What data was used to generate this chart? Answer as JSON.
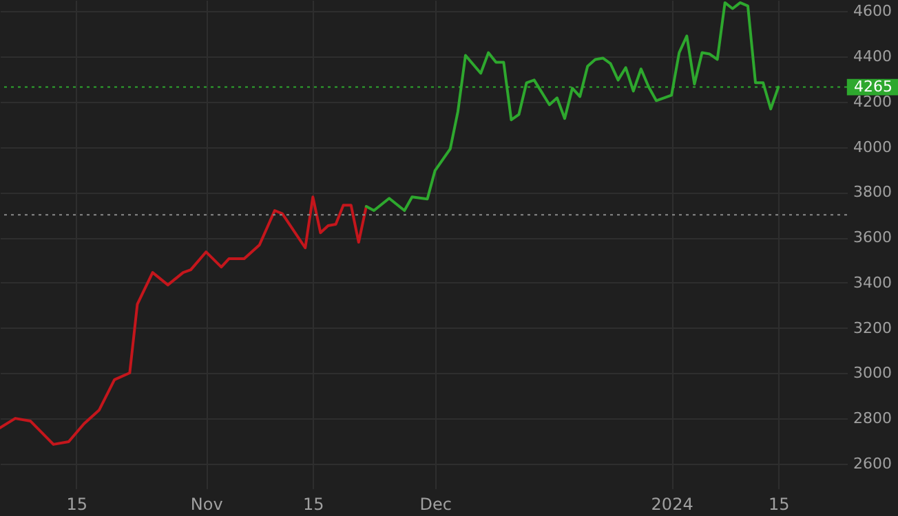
{
  "chart_data": {
    "type": "line",
    "x": [
      "2023-10-05",
      "2023-10-07",
      "2023-10-09",
      "2023-10-12",
      "2023-10-14",
      "2023-10-16",
      "2023-10-18",
      "2023-10-20",
      "2023-10-22",
      "2023-10-23",
      "2023-10-25",
      "2023-10-27",
      "2023-10-29",
      "2023-10-30",
      "2023-11-01",
      "2023-11-03",
      "2023-11-04",
      "2023-11-06",
      "2023-11-08",
      "2023-11-10",
      "2023-11-11",
      "2023-11-14",
      "2023-11-15",
      "2023-11-16",
      "2023-11-17",
      "2023-11-18",
      "2023-11-19",
      "2023-11-20",
      "2023-11-21",
      "2023-11-22",
      "2023-11-23",
      "2023-11-25",
      "2023-11-27",
      "2023-11-28",
      "2023-11-30",
      "2023-12-01",
      "2023-12-03",
      "2023-12-04",
      "2023-12-05",
      "2023-12-07",
      "2023-12-08",
      "2023-12-09",
      "2023-12-10",
      "2023-12-11",
      "2023-12-12",
      "2023-12-13",
      "2023-12-14",
      "2023-12-16",
      "2023-12-17",
      "2023-12-18",
      "2023-12-19",
      "2023-12-20",
      "2023-12-21",
      "2023-12-22",
      "2023-12-23",
      "2023-12-24",
      "2023-12-25",
      "2023-12-26",
      "2023-12-27",
      "2023-12-28",
      "2023-12-29",
      "2023-12-30",
      "2024-01-01",
      "2024-01-02",
      "2024-01-03",
      "2024-01-04",
      "2024-01-05",
      "2024-01-06",
      "2024-01-07",
      "2024-01-08",
      "2024-01-09",
      "2024-01-10",
      "2024-01-11",
      "2024-01-12",
      "2024-01-13",
      "2024-01-14",
      "2024-01-15"
    ],
    "series": [
      {
        "color": "#c4161c",
        "values": [
          2758,
          2800,
          2788,
          2685,
          2697,
          2776,
          2837,
          2971,
          3001,
          3305,
          3445,
          3390,
          3445,
          3457,
          3536,
          3469,
          3506,
          3506,
          3567,
          3719,
          3705,
          3554,
          3779,
          3621,
          3652,
          3658,
          3743,
          3743,
          3579,
          3737,
          null,
          null,
          null,
          null,
          null,
          null,
          null,
          null,
          null,
          null,
          null,
          null,
          null,
          null,
          null,
          null,
          null,
          null,
          null,
          null,
          null,
          null,
          null,
          null,
          null,
          null,
          null,
          null,
          null,
          null,
          null,
          null,
          null,
          null,
          null,
          null,
          null,
          null,
          null,
          null,
          null,
          null,
          null,
          null,
          null,
          null,
          null
        ]
      },
      {
        "color": "#2ea82e",
        "values": [
          null,
          null,
          null,
          null,
          null,
          null,
          null,
          null,
          null,
          null,
          null,
          null,
          null,
          null,
          null,
          null,
          null,
          null,
          null,
          null,
          null,
          null,
          null,
          null,
          null,
          null,
          null,
          null,
          null,
          3737,
          3719,
          3773,
          3719,
          3779,
          3770,
          3895,
          3992,
          4156,
          4405,
          4326,
          4417,
          4375,
          4375,
          4120,
          4144,
          4284,
          4296,
          4187,
          4217,
          4126,
          4260,
          4223,
          4357,
          4387,
          4393,
          4369,
          4296,
          4351,
          4247,
          4345,
          4266,
          4205,
          4229,
          4417,
          4491,
          4278,
          4417,
          4411,
          4387,
          4638,
          4612,
          4638,
          4624,
          4284,
          4284,
          4168,
          4265
        ]
      }
    ],
    "xlim": [
      "2023-10-05",
      "2024-01-24"
    ],
    "xticks": [
      {
        "value": "2023-10-15",
        "label": "15"
      },
      {
        "value": "2023-11-01",
        "label": "Nov"
      },
      {
        "value": "2023-11-15",
        "label": "15"
      },
      {
        "value": "2023-12-01",
        "label": "Dec"
      },
      {
        "value": "2024-01-01",
        "label": "2024"
      },
      {
        "value": "2024-01-15",
        "label": "15"
      }
    ],
    "ylim": [
      2490,
      4650
    ],
    "yticks": [
      2600,
      2800,
      3000,
      3200,
      3400,
      3600,
      3800,
      4000,
      4200,
      4400,
      4600
    ],
    "grid": true,
    "line_style": "solid",
    "ref_lines": [
      {
        "axis": "y",
        "value": 3700,
        "color": "#8a8a8a",
        "line_style": "dotted"
      },
      {
        "axis": "y",
        "value": 4265,
        "label": "4265",
        "color": "#2ea82e",
        "line_style": "dotted"
      }
    ]
  }
}
